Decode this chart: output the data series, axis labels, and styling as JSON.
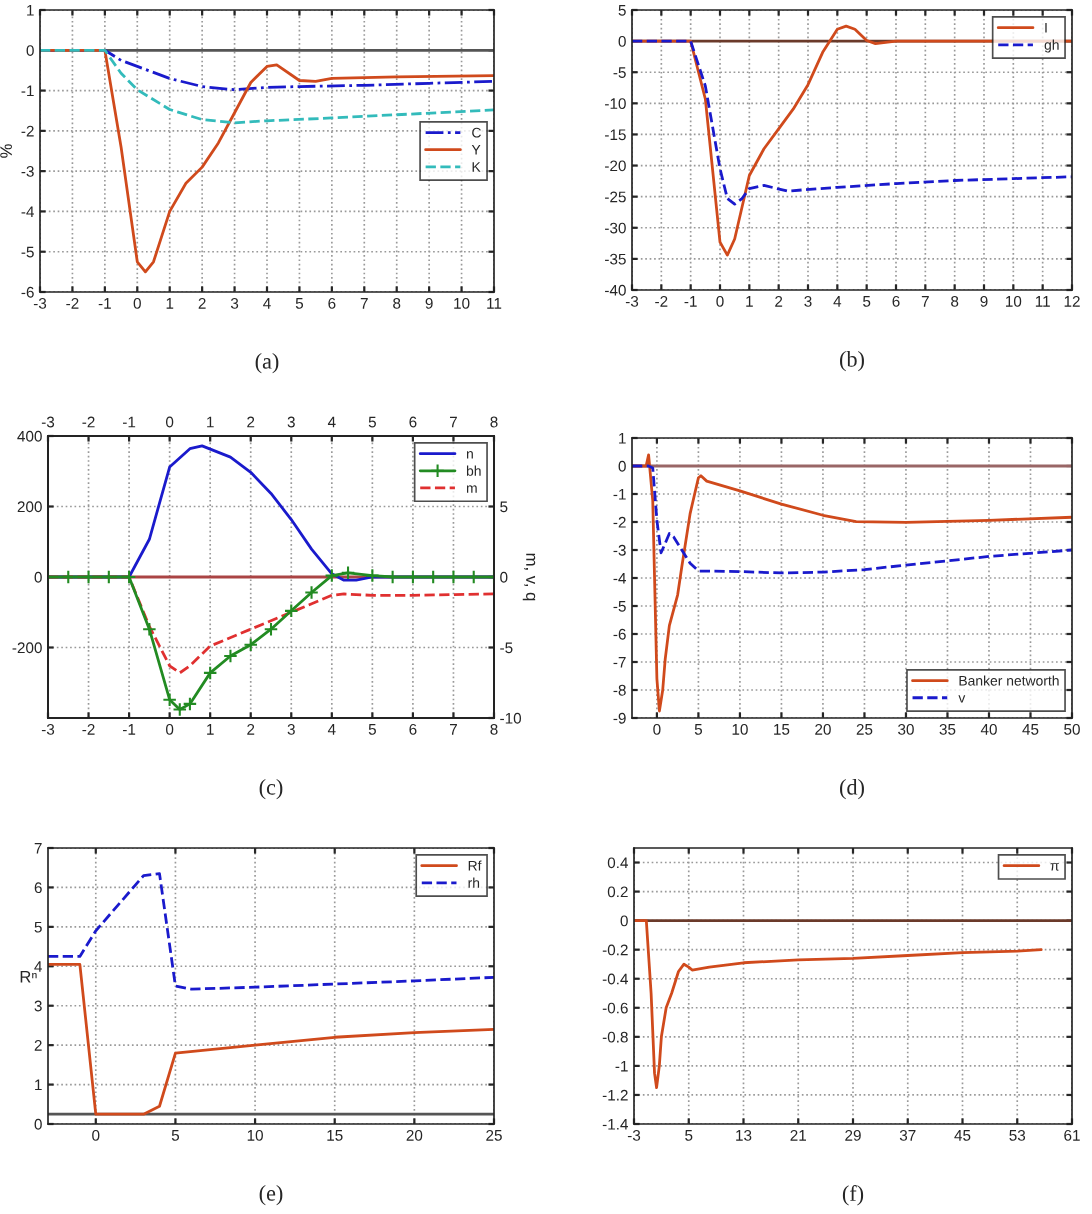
{
  "chart_data": [
    {
      "type": "line",
      "ylabel": "%",
      "annotations": [
        "(a)"
      ],
      "xlim": [
        -3,
        11
      ],
      "xticks": [
        -3,
        -2,
        -1,
        0,
        1,
        2,
        3,
        4,
        5,
        6,
        7,
        8,
        9,
        10,
        11
      ],
      "ylim": [
        -6,
        1
      ],
      "yticks": [
        -6,
        -5,
        -4,
        -3,
        -2,
        -1,
        0,
        1
      ],
      "grid": true,
      "legend": "right",
      "ref_lines": [
        {
          "axis": "y",
          "value": 0,
          "color": "#555555"
        }
      ],
      "series": [
        {
          "name": "C",
          "color": "#1a1acc",
          "line_style": "dashdot",
          "x": [
            -3,
            -1,
            -0.5,
            0,
            1,
            2,
            3,
            4,
            5,
            7,
            9,
            11
          ],
          "values": [
            0,
            0,
            -0.25,
            -0.4,
            -0.7,
            -0.9,
            -0.98,
            -0.92,
            -0.9,
            -0.87,
            -0.82,
            -0.77
          ]
        },
        {
          "name": "Y",
          "color": "#d04a1c",
          "line_style": "solid",
          "x": [
            -3,
            -1,
            -0.5,
            0,
            0.25,
            0.5,
            1,
            1.5,
            2,
            2.5,
            3,
            3.5,
            4,
            4.3,
            5,
            5.5,
            6,
            8,
            11
          ],
          "values": [
            0,
            0,
            -2.4,
            -5.25,
            -5.5,
            -5.25,
            -4.0,
            -3.3,
            -2.9,
            -2.3,
            -1.55,
            -0.8,
            -0.4,
            -0.36,
            -0.75,
            -0.77,
            -0.7,
            -0.66,
            -0.63
          ]
        },
        {
          "name": "K",
          "color": "#33bbbb",
          "line_style": "dashed",
          "x": [
            -3,
            -1,
            -0.5,
            0,
            1,
            2,
            3,
            4,
            6,
            8,
            11
          ],
          "values": [
            0,
            0,
            -0.57,
            -0.98,
            -1.47,
            -1.72,
            -1.8,
            -1.75,
            -1.68,
            -1.6,
            -1.48
          ]
        }
      ]
    },
    {
      "type": "line",
      "annotations": [
        "(b)"
      ],
      "xlim": [
        -3,
        12
      ],
      "xticks": [
        -3,
        -2,
        -1,
        0,
        1,
        2,
        3,
        4,
        5,
        6,
        7,
        8,
        9,
        10,
        11,
        12
      ],
      "ylim": [
        -40,
        5
      ],
      "yticks": [
        -40,
        -35,
        -30,
        -25,
        -20,
        -15,
        -10,
        -5,
        0,
        5
      ],
      "grid": true,
      "legend": "top right",
      "ref_lines": [
        {
          "axis": "y",
          "value": 0,
          "color": "#6b3a2a"
        }
      ],
      "series": [
        {
          "name": "I",
          "color": "#d04a1c",
          "line_style": "solid",
          "x": [
            -3,
            -1,
            -0.5,
            0,
            0.25,
            0.5,
            1,
            1.5,
            2,
            2.5,
            3,
            3.5,
            4,
            4.3,
            4.6,
            5,
            5.3,
            6,
            12
          ],
          "values": [
            0,
            0,
            -9.3,
            -32.3,
            -34.4,
            -31.8,
            -21.6,
            -17.3,
            -14.1,
            -10.9,
            -7.0,
            -1.8,
            1.9,
            2.4,
            1.9,
            0.1,
            -0.4,
            0,
            0
          ]
        },
        {
          "name": "gh",
          "color": "#1a1acc",
          "line_style": "dashed",
          "x": [
            -3,
            -1,
            -0.5,
            0,
            0.25,
            0.5,
            0.75,
            1,
            1.5,
            2.3,
            4,
            6,
            8,
            10,
            12
          ],
          "values": [
            0,
            0,
            -7.2,
            -20.5,
            -25.3,
            -26.2,
            -25.3,
            -23.7,
            -23.2,
            -24.1,
            -23.5,
            -22.9,
            -22.4,
            -22.1,
            -21.8
          ]
        }
      ]
    },
    {
      "type": "line",
      "y2label": "m, v, q",
      "annotations": [
        "(c)"
      ],
      "xlim": [
        -3,
        8
      ],
      "xticks": [
        -3,
        -2,
        -1,
        0,
        1,
        2,
        3,
        4,
        5,
        6,
        7,
        8
      ],
      "x2lim": [
        -3,
        8
      ],
      "x2ticks": [
        -3,
        -2,
        -1,
        0,
        1,
        2,
        3,
        4,
        5,
        6,
        7,
        8
      ],
      "ylim": [
        -400,
        400
      ],
      "yticks": [
        -200,
        0,
        200,
        400
      ],
      "y2lim": [
        -10,
        10
      ],
      "y2ticks": [
        -10,
        -5,
        0,
        5
      ],
      "grid": true,
      "legend": "top right",
      "ref_lines": [
        {
          "axis": "y",
          "value": 0,
          "color": "#aa4444"
        }
      ],
      "series": [
        {
          "name": "n",
          "color": "#1a1acc",
          "line_style": "solid",
          "x": [
            -3,
            -1,
            -0.5,
            0,
            0.5,
            0.8,
            1.5,
            2,
            2.5,
            3,
            3.5,
            4,
            4.3,
            4.6,
            5,
            8
          ],
          "values": [
            0,
            0,
            107,
            312,
            364,
            372,
            340,
            297,
            237,
            163,
            79,
            9,
            -9,
            -9,
            0,
            0
          ]
        },
        {
          "name": "bh",
          "color": "#228b22",
          "line_style": "solid",
          "marker": "cross",
          "axis": "y2",
          "x": [
            -3,
            -2.5,
            -2,
            -1.5,
            -1,
            -0.5,
            0,
            0.25,
            0.5,
            1,
            1.5,
            2,
            2.5,
            3,
            3.5,
            4,
            4.4,
            5,
            5.5,
            6,
            6.5,
            7,
            7.5,
            8
          ],
          "values": [
            0,
            0,
            0,
            0,
            0,
            -3.7,
            -8.7,
            -9.4,
            -9.0,
            -6.8,
            -5.6,
            -4.8,
            -3.7,
            -2.4,
            -1.1,
            0.1,
            0.3,
            0.1,
            0,
            0,
            0,
            0,
            0,
            0
          ]
        },
        {
          "name": "m",
          "color": "#e03030",
          "line_style": "dashed",
          "axis": "y2",
          "x": [
            -3,
            -1,
            -0.5,
            0,
            0.25,
            0.5,
            1,
            2,
            3,
            4,
            4.3,
            5,
            6,
            8
          ],
          "values": [
            0,
            0,
            -3.5,
            -6.3,
            -6.8,
            -6.3,
            -4.9,
            -3.7,
            -2.5,
            -1.3,
            -1.2,
            -1.3,
            -1.3,
            -1.2
          ]
        }
      ]
    },
    {
      "type": "line",
      "annotations": [
        "(d)"
      ],
      "xlim": [
        -3,
        50
      ],
      "xticks": [
        0,
        5,
        10,
        15,
        20,
        25,
        30,
        35,
        40,
        45,
        50
      ],
      "ylim": [
        -9,
        1
      ],
      "yticks": [
        -9,
        -8,
        -7,
        -6,
        -5,
        -4,
        -3,
        -2,
        -1,
        0,
        1
      ],
      "grid": true,
      "legend": "bottom right",
      "ref_lines": [
        {
          "axis": "y",
          "value": 0,
          "color": "#996666"
        }
      ],
      "series": [
        {
          "name": "Banker networth",
          "color": "#d04a1c",
          "line_style": "solid",
          "x": [
            -3,
            -1.3,
            -1,
            -0.5,
            0,
            0.3,
            0.7,
            1,
            1.5,
            2.5,
            3,
            4,
            5,
            5.3,
            6,
            10,
            15,
            20,
            24,
            30,
            40,
            50
          ],
          "values": [
            0,
            0,
            0.4,
            -1.24,
            -7.6,
            -8.75,
            -8.0,
            -6.9,
            -5.7,
            -4.6,
            -3.6,
            -1.7,
            -0.42,
            -0.35,
            -0.54,
            -0.89,
            -1.36,
            -1.76,
            -1.99,
            -2.01,
            -1.94,
            -1.83
          ]
        },
        {
          "name": "v",
          "color": "#1a1acc",
          "line_style": "dashed",
          "x": [
            -3,
            -1,
            -0.5,
            0,
            0.5,
            1,
            1.5,
            2,
            3,
            4,
            5,
            10,
            15,
            20,
            25,
            30,
            40,
            50
          ],
          "values": [
            0,
            0,
            -0.07,
            -1.94,
            -3.1,
            -2.76,
            -2.41,
            -2.53,
            -3.0,
            -3.47,
            -3.75,
            -3.77,
            -3.82,
            -3.79,
            -3.7,
            -3.54,
            -3.23,
            -3.0
          ]
        }
      ]
    },
    {
      "type": "line",
      "ylabel": "Rⁿ",
      "annotations": [
        "(e)"
      ],
      "xlim": [
        -3,
        25
      ],
      "xticks": [
        0,
        5,
        10,
        15,
        20,
        25
      ],
      "ylim": [
        0,
        7
      ],
      "yticks": [
        0,
        1,
        2,
        3,
        4,
        5,
        6,
        7
      ],
      "grid": true,
      "legend": "top right",
      "ref_lines": [
        {
          "axis": "y",
          "value": 0.25,
          "color": "#555555"
        }
      ],
      "series": [
        {
          "name": "Rf",
          "color": "#d04a1c",
          "line_style": "solid",
          "x": [
            -3,
            -1,
            0,
            3,
            4,
            5,
            10,
            15,
            20,
            25
          ],
          "values": [
            4.05,
            4.05,
            0.25,
            0.25,
            0.45,
            1.8,
            2.0,
            2.2,
            2.32,
            2.4
          ]
        },
        {
          "name": "rh",
          "color": "#1a1acc",
          "line_style": "dashed",
          "x": [
            -3,
            -1,
            0,
            3,
            4,
            5,
            6,
            10,
            15,
            20,
            25
          ],
          "values": [
            4.25,
            4.25,
            4.9,
            6.3,
            6.35,
            3.5,
            3.42,
            3.47,
            3.55,
            3.63,
            3.72
          ]
        }
      ]
    },
    {
      "type": "line",
      "annotations": [
        "(f)"
      ],
      "xlim": [
        -3,
        61
      ],
      "xticks": [
        -3,
        5,
        13,
        21,
        29,
        37,
        45,
        53,
        61
      ],
      "ylim": [
        -1.4,
        0.5
      ],
      "yticks": [
        -1.4,
        -1.2,
        -1,
        -0.8,
        -0.6,
        -0.4,
        -0.2,
        0,
        0.2,
        0.4
      ],
      "grid": true,
      "legend": "top right",
      "ref_lines": [
        {
          "axis": "y",
          "value": 0,
          "color": "#6b3a2a"
        }
      ],
      "series": [
        {
          "name": "π",
          "color": "#d04a1c",
          "line_style": "solid",
          "x": [
            -3,
            -1.2,
            -0.5,
            0,
            0.3,
            0.7,
            1,
            1.7,
            2.5,
            3.5,
            4.3,
            5,
            5.5,
            8,
            13,
            21,
            29,
            37,
            45,
            53,
            56.5
          ],
          "values": [
            0,
            0,
            -0.5,
            -1.05,
            -1.15,
            -1.0,
            -0.8,
            -0.6,
            -0.5,
            -0.35,
            -0.3,
            -0.32,
            -0.34,
            -0.32,
            -0.29,
            -0.27,
            -0.26,
            -0.24,
            -0.22,
            -0.21,
            -0.2
          ]
        }
      ]
    }
  ]
}
